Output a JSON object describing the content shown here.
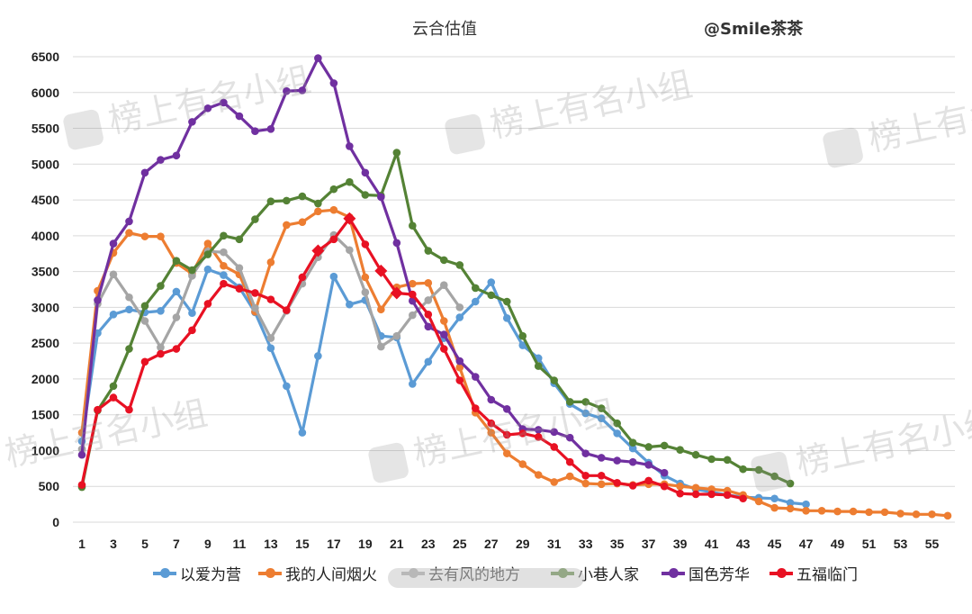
{
  "header": {
    "title": "云合估值",
    "credit": "@Smile茶茶"
  },
  "watermark": {
    "text": "榜上有名小组"
  },
  "chart_data": {
    "type": "line",
    "title": "云合估值",
    "xlim": [
      1,
      56
    ],
    "ylim": [
      0,
      6500
    ],
    "x_ticks": [
      1,
      3,
      5,
      7,
      9,
      11,
      13,
      15,
      17,
      19,
      21,
      23,
      25,
      27,
      29,
      31,
      33,
      35,
      37,
      39,
      41,
      43,
      45,
      47,
      49,
      51,
      53,
      55
    ],
    "y_ticks": [
      0,
      500,
      1000,
      1500,
      2000,
      2500,
      3000,
      3500,
      4000,
      4500,
      5000,
      5500,
      6000,
      6500
    ],
    "grid": true,
    "legend_position": "bottom",
    "series": [
      {
        "name": "以爱为营",
        "color": "#5b9bd5",
        "values": [
          1130,
          2640,
          2900,
          2970,
          2930,
          2950,
          3220,
          2920,
          3530,
          3450,
          3280,
          2930,
          2430,
          1900,
          1250,
          2320,
          3430,
          3040,
          3100,
          2600,
          2580,
          1930,
          2240,
          2570,
          2860,
          3080,
          3350,
          2850,
          2470,
          2290,
          1940,
          1650,
          1520,
          1450,
          1240,
          1030,
          830,
          650,
          540,
          460,
          420,
          380,
          350,
          340,
          330,
          270,
          250
        ]
      },
      {
        "name": "我的人间烟火",
        "color": "#ed7d31",
        "values": [
          1250,
          3230,
          3760,
          4040,
          3990,
          3990,
          3620,
          3470,
          3890,
          3580,
          3460,
          2940,
          3630,
          4150,
          4190,
          4340,
          4360,
          4260,
          3420,
          2970,
          3280,
          3330,
          3340,
          2810,
          2160,
          1530,
          1250,
          960,
          810,
          660,
          560,
          640,
          540,
          530,
          540,
          520,
          530,
          530,
          500,
          480,
          460,
          440,
          380,
          290,
          200,
          190,
          160,
          160,
          150,
          150,
          140,
          140,
          120,
          110,
          110,
          90
        ]
      },
      {
        "name": "去有风的地方",
        "color": "#a5a5a5",
        "values": [
          1020,
          3050,
          3460,
          3140,
          2810,
          2440,
          2860,
          3440,
          3780,
          3770,
          3550,
          2990,
          2570,
          2950,
          3330,
          3700,
          4010,
          3800,
          3210,
          2450,
          2600,
          2890,
          3100,
          3310,
          3000
        ]
      },
      {
        "name": "小巷人家",
        "color": "#548235",
        "values": [
          490,
          1560,
          1900,
          2420,
          3020,
          3300,
          3650,
          3520,
          3740,
          4000,
          3950,
          4230,
          4480,
          4490,
          4550,
          4450,
          4650,
          4750,
          4570,
          4560,
          5160,
          4140,
          3790,
          3660,
          3590,
          3270,
          3170,
          3080,
          2600,
          2180,
          1980,
          1680,
          1680,
          1590,
          1380,
          1110,
          1050,
          1070,
          1010,
          940,
          880,
          870,
          740,
          730,
          640,
          540
        ]
      },
      {
        "name": "国色芳华",
        "color": "#7030a0",
        "values": [
          940,
          3100,
          3890,
          4200,
          4880,
          5060,
          5120,
          5590,
          5780,
          5860,
          5670,
          5460,
          5490,
          6020,
          6030,
          6480,
          6130,
          5250,
          4880,
          4540,
          3900,
          3090,
          2730,
          2620,
          2250,
          2030,
          1710,
          1580,
          1300,
          1290,
          1260,
          1180,
          960,
          900,
          860,
          840,
          800,
          690
        ]
      },
      {
        "name": "五福临门",
        "color": "#e81123",
        "values": [
          520,
          1570,
          1740,
          1570,
          2240,
          2350,
          2420,
          2680,
          3050,
          3330,
          3260,
          3200,
          3110,
          2960,
          3420,
          3790,
          3950,
          4240,
          3880,
          3510,
          3200,
          3180,
          2900,
          2420,
          1980,
          1590,
          1380,
          1220,
          1240,
          1190,
          1050,
          840,
          650,
          650,
          550,
          510,
          580,
          500,
          400,
          390,
          390,
          380,
          330
        ],
        "markers_diamond": {
          "x": [
            16,
            18,
            20,
            21
          ]
        }
      }
    ]
  }
}
